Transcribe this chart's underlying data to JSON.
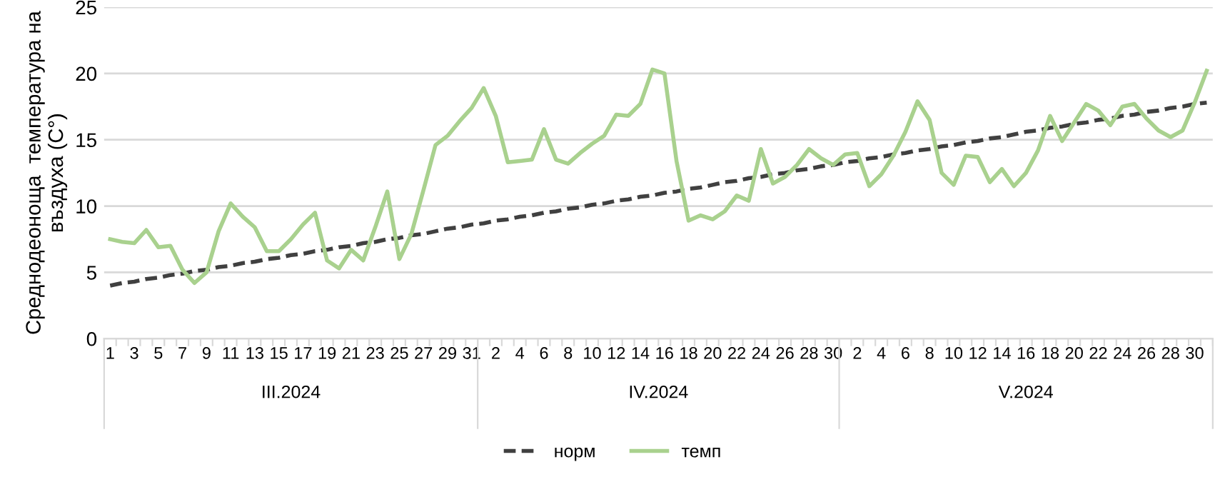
{
  "chart_data": {
    "type": "line",
    "ylabel": "Среднодеоноща  температура на въздуха (C°)",
    "categories": [
      "1",
      null,
      "3",
      null,
      "5",
      null,
      "7",
      null,
      "9",
      null,
      "11",
      null,
      "13",
      null,
      "15",
      null,
      "17",
      null,
      "19",
      null,
      "21",
      null,
      "23",
      null,
      "25",
      null,
      "27",
      null,
      "29",
      null,
      "31",
      null,
      "2",
      null,
      "4",
      null,
      "6",
      null,
      "8",
      null,
      "10",
      null,
      "12",
      null,
      "14",
      null,
      "16",
      null,
      "18",
      null,
      "20",
      null,
      "22",
      null,
      "24",
      null,
      "26",
      null,
      "28",
      null,
      "30",
      null,
      "2",
      null,
      "4",
      null,
      "6",
      null,
      "8",
      null,
      "10",
      null,
      "12",
      null,
      "14",
      null,
      "16",
      null,
      "18",
      null,
      "20",
      null,
      "22",
      null,
      "24",
      null,
      "26",
      null,
      "28",
      null,
      "30",
      null
    ],
    "annotations": [
      "III.2024",
      "IV.2024",
      "V.2024"
    ],
    "series": [
      {
        "name": "норм",
        "color": "#404040",
        "line_style": "dashed",
        "values": [
          4.0,
          4.2,
          4.3,
          4.5,
          4.6,
          4.8,
          4.9,
          5.1,
          5.2,
          5.4,
          5.5,
          5.7,
          5.8,
          6.0,
          6.1,
          6.3,
          6.4,
          6.6,
          6.7,
          6.9,
          7.0,
          7.2,
          7.3,
          7.5,
          7.6,
          7.8,
          7.9,
          8.1,
          8.3,
          8.4,
          8.6,
          8.7,
          8.9,
          9.0,
          9.2,
          9.3,
          9.5,
          9.6,
          9.8,
          9.9,
          10.1,
          10.2,
          10.4,
          10.5,
          10.7,
          10.8,
          11.0,
          11.1,
          11.3,
          11.4,
          11.6,
          11.8,
          11.9,
          12.1,
          12.2,
          12.4,
          12.5,
          12.7,
          12.8,
          13.0,
          13.1,
          13.3,
          13.4,
          13.6,
          13.7,
          13.9,
          14.0,
          14.2,
          14.3,
          14.5,
          14.6,
          14.8,
          14.9,
          15.1,
          15.2,
          15.4,
          15.6,
          15.7,
          15.9,
          16.0,
          16.2,
          16.3,
          16.5,
          16.6,
          16.8,
          16.9,
          17.1,
          17.2,
          17.4,
          17.5,
          17.7,
          17.8
        ]
      },
      {
        "name": "темп",
        "color": "#a9d18e",
        "line_style": "solid",
        "values": [
          7.5,
          7.3,
          7.2,
          8.2,
          6.9,
          7.0,
          5.2,
          4.2,
          5.0,
          8.1,
          10.2,
          9.2,
          8.4,
          6.6,
          6.6,
          7.5,
          8.6,
          9.5,
          5.9,
          5.3,
          6.7,
          5.9,
          8.4,
          11.1,
          6.0,
          7.9,
          11.2,
          14.6,
          15.3,
          16.4,
          17.4,
          18.9,
          16.8,
          13.3,
          13.4,
          13.5,
          15.8,
          13.5,
          13.2,
          14.0,
          14.7,
          15.3,
          16.9,
          16.8,
          17.7,
          20.3,
          20.0,
          13.4,
          8.9,
          9.3,
          9.0,
          9.6,
          10.8,
          10.4,
          14.3,
          11.7,
          12.2,
          13.1,
          14.3,
          13.6,
          13.1,
          13.9,
          14.0,
          11.5,
          12.4,
          13.8,
          15.6,
          17.9,
          16.5,
          12.5,
          11.6,
          13.8,
          13.7,
          11.8,
          12.8,
          11.5,
          12.5,
          14.2,
          16.8,
          14.9,
          16.3,
          17.7,
          17.2,
          16.1,
          17.5,
          17.7,
          16.6,
          15.7,
          15.2,
          15.7,
          17.8,
          20.2
        ]
      }
    ],
    "ylim": [
      0,
      25
    ],
    "yticks": [
      0,
      5,
      10,
      15,
      20,
      25
    ],
    "grid": "y",
    "legend": "bottom",
    "marker": "none"
  }
}
